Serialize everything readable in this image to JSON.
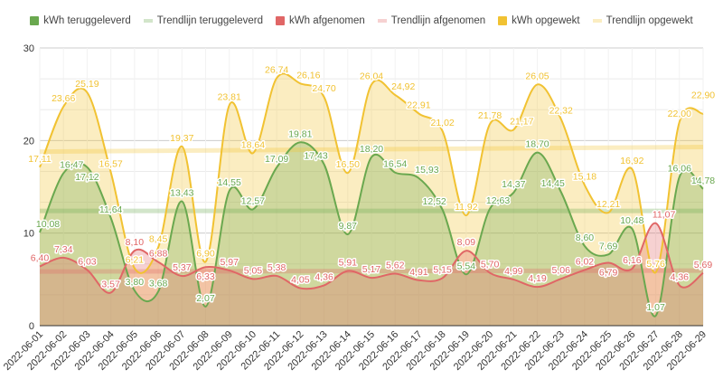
{
  "chart_data": {
    "type": "area",
    "title": "",
    "xlabel": "",
    "ylabel": "",
    "ylim": [
      0,
      30
    ],
    "yticks": [
      0,
      10,
      20,
      30
    ],
    "grid": true,
    "legend_position": "top",
    "x": [
      "2022-06-01",
      "2022-06-02",
      "2022-06-03",
      "2022-06-04",
      "2022-06-05",
      "2022-06-06",
      "2022-06-07",
      "2022-06-08",
      "2022-06-09",
      "2022-06-10",
      "2022-06-11",
      "2022-06-12",
      "2022-06-13",
      "2022-06-14",
      "2022-06-15",
      "2022-06-16",
      "2022-06-17",
      "2022-06-18",
      "2022-06-19",
      "2022-06-20",
      "2022-06-21",
      "2022-06-22",
      "2022-06-23",
      "2022-06-24",
      "2022-06-25",
      "2022-06-26",
      "2022-06-27",
      "2022-06-28",
      "2022-06-29"
    ],
    "series": [
      {
        "name": "kWh opgewekt",
        "color": "#f1c232",
        "trend_name": "Trendlijn opgewekt",
        "trend": [
          18.8,
          19.3
        ],
        "values": [
          17.11,
          23.66,
          25.19,
          16.57,
          6.21,
          8.45,
          19.37,
          6.9,
          23.81,
          18.64,
          26.74,
          26.16,
          24.7,
          16.5,
          26.04,
          24.92,
          22.91,
          21.02,
          11.92,
          21.78,
          21.17,
          26.05,
          22.32,
          15.18,
          12.21,
          16.92,
          5.76,
          22.0,
          22.9
        ]
      },
      {
        "name": "kWh teruggeleverd",
        "color": "#6aa84f",
        "trend_name": "Trendlijn teruggeleverd",
        "trend": [
          12.4,
          12.4
        ],
        "values": [
          10.08,
          16.47,
          17.12,
          11.64,
          3.8,
          3.68,
          13.43,
          2.07,
          14.55,
          12.57,
          17.09,
          19.81,
          17.43,
          9.87,
          18.2,
          16.54,
          15.93,
          12.52,
          5.54,
          12.63,
          14.37,
          18.7,
          14.45,
          8.6,
          7.69,
          10.48,
          1.07,
          16.06,
          14.78
        ]
      },
      {
        "name": "kWh afgenomen",
        "color": "#e06666",
        "trend_name": "Trendlijn afgenomen",
        "trend": [
          5.85,
          5.95
        ],
        "values": [
          6.4,
          7.34,
          6.03,
          3.57,
          8.1,
          6.88,
          5.37,
          6.33,
          5.97,
          5.05,
          5.38,
          4.05,
          4.36,
          5.91,
          5.17,
          5.62,
          4.91,
          5.15,
          8.09,
          5.7,
          4.99,
          4.19,
          5.06,
          6.02,
          6.79,
          6.16,
          11.07,
          4.36,
          5.69
        ]
      }
    ],
    "legend": [
      "kWh teruggeleverd",
      "Trendlijn teruggeleverd",
      "kWh afgenomen",
      "Trendlijn afgenomen",
      "kWh opgewekt",
      "Trendlijn opgewekt"
    ]
  }
}
